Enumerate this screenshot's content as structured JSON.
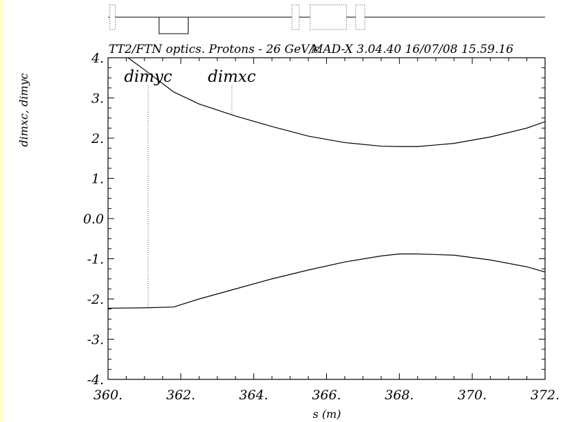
{
  "chart_data": {
    "type": "line",
    "title": "TT2/FTN optics. Protons - 26 GeV/c",
    "subtitle": "MAD-X 3.04.40  16/07/08 15.59.16",
    "xlabel": "s (m)",
    "ylabel": "dimxc, dimyc",
    "xlim": [
      360,
      372
    ],
    "ylim": [
      -4,
      4
    ],
    "x_ticks": [
      360,
      362,
      364,
      366,
      368,
      370,
      372
    ],
    "x_tick_labels": [
      "360.",
      "362.",
      "364.",
      "366.",
      "368.",
      "370.",
      "372."
    ],
    "y_ticks": [
      4,
      3,
      2,
      1,
      0,
      -1,
      -2,
      -3,
      -4
    ],
    "y_tick_labels": [
      "4.",
      "3.",
      "2.",
      "1.",
      "0.0",
      "-1.",
      "-2.",
      "-3.",
      "-4."
    ],
    "grid": false,
    "series": [
      {
        "name": "dimxc",
        "x": [
          360,
          361,
          361.8,
          362.5,
          363.5,
          364.5,
          365.5,
          366.5,
          367.5,
          368,
          368.5,
          369.5,
          370.5,
          371.5,
          372
        ],
        "y": [
          -2.23,
          -2.22,
          -2.2,
          -2.0,
          -1.75,
          -1.5,
          -1.28,
          -1.08,
          -0.93,
          -0.88,
          -0.88,
          -0.91,
          -1.03,
          -1.2,
          -1.33
        ]
      },
      {
        "name": "dimyc",
        "x": [
          360.55,
          361,
          361.8,
          362.5,
          363.5,
          364.5,
          365.5,
          366.5,
          367.5,
          368,
          368.5,
          369.5,
          370.5,
          371.5,
          372
        ],
        "y": [
          4.0,
          3.7,
          3.15,
          2.85,
          2.55,
          2.29,
          2.05,
          1.89,
          1.8,
          1.79,
          1.79,
          1.87,
          2.03,
          2.25,
          2.41
        ]
      }
    ],
    "series_labels": [
      {
        "name": "dimyc",
        "x": 361.1
      },
      {
        "name": "dimxc",
        "x": 363.4
      }
    ]
  },
  "layout_strip": {
    "elements": [
      {
        "kind": "dotted",
        "from": 360.05,
        "to": 360.2
      },
      {
        "kind": "solid-box-below",
        "from": 361.4,
        "to": 362.2
      },
      {
        "kind": "dotted",
        "from": 365.05,
        "to": 365.25
      },
      {
        "kind": "dotted",
        "from": 365.55,
        "to": 366.55
      },
      {
        "kind": "dotted",
        "from": 366.8,
        "to": 367.05
      }
    ]
  }
}
